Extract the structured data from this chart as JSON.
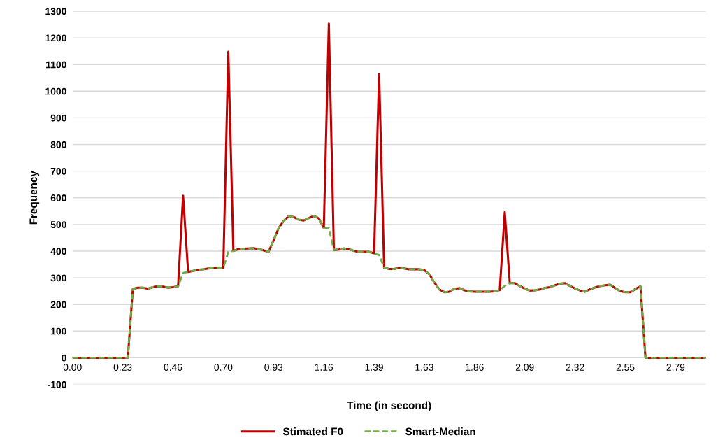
{
  "chart_data": {
    "type": "line",
    "xlabel": "Time (in second)",
    "ylabel": "Frequency",
    "categories": [
      "0.00",
      null,
      null,
      null,
      null,
      null,
      null,
      null,
      null,
      null,
      "0.23",
      null,
      null,
      null,
      null,
      null,
      null,
      null,
      null,
      null,
      "0.46",
      null,
      null,
      null,
      null,
      null,
      null,
      null,
      null,
      null,
      "0.70",
      null,
      null,
      null,
      null,
      null,
      null,
      null,
      null,
      null,
      "0.93",
      null,
      null,
      null,
      null,
      null,
      null,
      null,
      null,
      null,
      "1.16",
      null,
      null,
      null,
      null,
      null,
      null,
      null,
      null,
      null,
      "1.39",
      null,
      null,
      null,
      null,
      null,
      null,
      null,
      null,
      null,
      "1.63",
      null,
      null,
      null,
      null,
      null,
      null,
      null,
      null,
      null,
      "1.86",
      null,
      null,
      null,
      null,
      null,
      null,
      null,
      null,
      null,
      "2.09",
      null,
      null,
      null,
      null,
      null,
      null,
      null,
      null,
      null,
      "2.32",
      null,
      null,
      null,
      null,
      null,
      null,
      null,
      null,
      null,
      "2.55",
      null,
      null,
      null,
      null,
      null,
      null,
      null,
      null,
      null,
      "2.79",
      null,
      null,
      null,
      null,
      null,
      null
    ],
    "series": [
      {
        "name": "Stimated F0",
        "color": "#c00000",
        "line_style": "solid",
        "values": [
          0,
          0,
          0,
          0,
          0,
          0,
          0,
          0,
          0,
          0,
          0,
          0,
          258,
          263,
          263,
          259,
          265,
          269,
          267,
          263,
          265,
          268,
          608,
          322,
          326,
          330,
          332,
          335,
          337,
          337,
          338,
          1148,
          401,
          407,
          409,
          410,
          411,
          408,
          403,
          397,
          440,
          486,
          513,
          531,
          528,
          518,
          515,
          524,
          532,
          523,
          487,
          1253,
          404,
          406,
          410,
          407,
          401,
          397,
          397,
          397,
          392,
          1065,
          338,
          333,
          333,
          338,
          335,
          332,
          332,
          332,
          329,
          313,
          282,
          256,
          246,
          248,
          259,
          261,
          253,
          249,
          248,
          248,
          248,
          248,
          249,
          254,
          546,
          280,
          280,
          269,
          259,
          252,
          253,
          256,
          262,
          265,
          272,
          278,
          280,
          269,
          260,
          252,
          248,
          257,
          264,
          269,
          272,
          274,
          261,
          250,
          246,
          246,
          258,
          268,
          0,
          0,
          0,
          0,
          0,
          0,
          0,
          0,
          0,
          0,
          0,
          0,
          0
        ]
      },
      {
        "name": "Smart-Median",
        "color": "#70ad47",
        "line_style": "dashed",
        "values": [
          0,
          0,
          0,
          0,
          0,
          0,
          0,
          0,
          0,
          0,
          0,
          0,
          258,
          263,
          263,
          259,
          265,
          269,
          267,
          263,
          265,
          268,
          318,
          322,
          326,
          330,
          332,
          335,
          337,
          337,
          338,
          397,
          401,
          407,
          409,
          410,
          411,
          408,
          403,
          397,
          440,
          486,
          513,
          531,
          528,
          518,
          515,
          524,
          532,
          523,
          487,
          487,
          404,
          406,
          410,
          407,
          401,
          397,
          397,
          397,
          390,
          386,
          338,
          333,
          333,
          338,
          335,
          332,
          332,
          332,
          329,
          313,
          282,
          256,
          246,
          248,
          259,
          261,
          253,
          249,
          248,
          248,
          248,
          248,
          249,
          254,
          269,
          280,
          280,
          269,
          259,
          252,
          253,
          256,
          262,
          265,
          272,
          278,
          280,
          269,
          260,
          252,
          248,
          257,
          264,
          269,
          272,
          274,
          261,
          250,
          246,
          246,
          258,
          268,
          0,
          0,
          0,
          0,
          0,
          0,
          0,
          0,
          0,
          0,
          0,
          0,
          0
        ]
      }
    ],
    "ylim": [
      -100,
      1300
    ],
    "yticks": [
      -100,
      0,
      100,
      200,
      300,
      400,
      500,
      600,
      700,
      800,
      900,
      1000,
      1100,
      1200,
      1300
    ],
    "grid": "y",
    "legend": "bottom"
  }
}
